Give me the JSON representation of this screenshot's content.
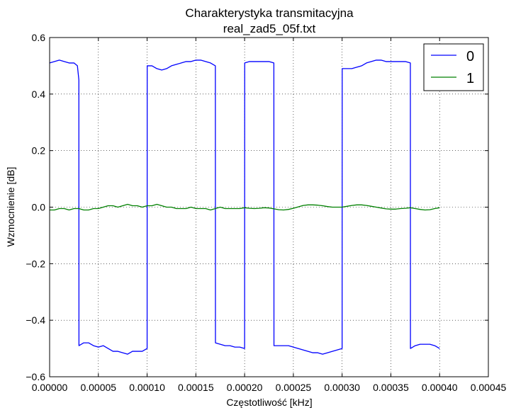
{
  "chart_data": {
    "type": "line",
    "title": "Charakterystyka transmitacyjna",
    "subtitle": "real_zad5_05f.txt",
    "xlabel": "Częstotliwość [kHz]",
    "ylabel": "Wzmocnienie [dB]",
    "xlim": [
      0,
      0.00045
    ],
    "ylim": [
      -0.6,
      0.6
    ],
    "grid": true,
    "legend_position": "top-right",
    "x_ticks": [
      "0.00000",
      "0.00005",
      "0.00010",
      "0.00015",
      "0.00020",
      "0.00025",
      "0.00030",
      "0.00035",
      "0.00040",
      "0.00045"
    ],
    "y_ticks": [
      "−0.6",
      "−0.4",
      "−0.2",
      "0.0",
      "0.2",
      "0.4",
      "0.6"
    ],
    "series": [
      {
        "name": "0",
        "color": "#0000ff",
        "points": [
          [
            0.0,
            0.51
          ],
          [
            5e-06,
            0.515
          ],
          [
            1e-05,
            0.52
          ],
          [
            1.5e-05,
            0.515
          ],
          [
            2e-05,
            0.51
          ],
          [
            2.5e-05,
            0.51
          ],
          [
            2.85e-05,
            0.5
          ],
          [
            3e-05,
            0.45
          ],
          [
            3.01e-05,
            -0.49
          ],
          [
            3.5e-05,
            -0.48
          ],
          [
            4e-05,
            -0.48
          ],
          [
            4.5e-05,
            -0.49
          ],
          [
            5e-05,
            -0.495
          ],
          [
            5.5e-05,
            -0.49
          ],
          [
            6e-05,
            -0.5
          ],
          [
            6.5e-05,
            -0.51
          ],
          [
            7e-05,
            -0.51
          ],
          [
            7.5e-05,
            -0.515
          ],
          [
            8e-05,
            -0.52
          ],
          [
            8.5e-05,
            -0.51
          ],
          [
            9e-05,
            -0.51
          ],
          [
            9.5e-05,
            -0.51
          ],
          [
            0.0001,
            -0.5
          ],
          [
            0.0001001,
            0.5
          ],
          [
            0.000105,
            0.5
          ],
          [
            0.00011,
            0.49
          ],
          [
            0.000115,
            0.485
          ],
          [
            0.00012,
            0.49
          ],
          [
            0.000125,
            0.5
          ],
          [
            0.00013,
            0.505
          ],
          [
            0.000135,
            0.51
          ],
          [
            0.00014,
            0.515
          ],
          [
            0.000145,
            0.515
          ],
          [
            0.00015,
            0.52
          ],
          [
            0.000155,
            0.52
          ],
          [
            0.00016,
            0.515
          ],
          [
            0.000165,
            0.51
          ],
          [
            0.00017,
            0.5
          ],
          [
            0.0001701,
            -0.48
          ],
          [
            0.000175,
            -0.485
          ],
          [
            0.00018,
            -0.49
          ],
          [
            0.000185,
            -0.49
          ],
          [
            0.00019,
            -0.495
          ],
          [
            0.000195,
            -0.495
          ],
          [
            0.0002,
            -0.5
          ],
          [
            0.0002001,
            0.51
          ],
          [
            0.000205,
            0.515
          ],
          [
            0.00021,
            0.515
          ],
          [
            0.000215,
            0.515
          ],
          [
            0.00022,
            0.515
          ],
          [
            0.000225,
            0.515
          ],
          [
            0.00023,
            0.51
          ],
          [
            0.0002301,
            -0.49
          ],
          [
            0.000235,
            -0.49
          ],
          [
            0.00024,
            -0.49
          ],
          [
            0.000245,
            -0.49
          ],
          [
            0.00025,
            -0.495
          ],
          [
            0.000255,
            -0.5
          ],
          [
            0.00026,
            -0.505
          ],
          [
            0.000265,
            -0.51
          ],
          [
            0.00027,
            -0.515
          ],
          [
            0.000275,
            -0.515
          ],
          [
            0.00028,
            -0.52
          ],
          [
            0.000285,
            -0.515
          ],
          [
            0.00029,
            -0.51
          ],
          [
            0.000295,
            -0.505
          ],
          [
            0.0003,
            -0.5
          ],
          [
            0.0003001,
            0.49
          ],
          [
            0.000305,
            0.49
          ],
          [
            0.00031,
            0.49
          ],
          [
            0.000315,
            0.495
          ],
          [
            0.00032,
            0.5
          ],
          [
            0.000325,
            0.51
          ],
          [
            0.00033,
            0.515
          ],
          [
            0.000335,
            0.52
          ],
          [
            0.00034,
            0.52
          ],
          [
            0.000345,
            0.515
          ],
          [
            0.00035,
            0.515
          ],
          [
            0.000355,
            0.515
          ],
          [
            0.00036,
            0.515
          ],
          [
            0.000365,
            0.515
          ],
          [
            0.00037,
            0.51
          ],
          [
            0.0003701,
            -0.5
          ],
          [
            0.000375,
            -0.49
          ],
          [
            0.00038,
            -0.485
          ],
          [
            0.000385,
            -0.485
          ],
          [
            0.00039,
            -0.485
          ],
          [
            0.000395,
            -0.49
          ],
          [
            0.0004,
            -0.5
          ]
        ]
      },
      {
        "name": "1",
        "color": "#008000",
        "points": [
          [
            0.0,
            -0.01
          ],
          [
            5e-06,
            -0.01
          ],
          [
            1e-05,
            -0.005
          ],
          [
            1.5e-05,
            -0.005
          ],
          [
            2e-05,
            -0.01
          ],
          [
            2.5e-05,
            -0.005
          ],
          [
            3e-05,
            -0.005
          ],
          [
            3.5e-05,
            -0.01
          ],
          [
            4e-05,
            -0.01
          ],
          [
            4.5e-05,
            -0.005
          ],
          [
            5e-05,
            -0.005
          ],
          [
            5.5e-05,
            0.0
          ],
          [
            6e-05,
            0.005
          ],
          [
            6.5e-05,
            0.005
          ],
          [
            7e-05,
            0.0
          ],
          [
            7.5e-05,
            0.005
          ],
          [
            8e-05,
            0.01
          ],
          [
            8.5e-05,
            0.005
          ],
          [
            9e-05,
            0.005
          ],
          [
            9.5e-05,
            0.0
          ],
          [
            0.0001,
            0.005
          ],
          [
            0.000105,
            0.005
          ],
          [
            0.00011,
            0.01
          ],
          [
            0.000115,
            0.005
          ],
          [
            0.00012,
            0.0
          ],
          [
            0.000125,
            0.0
          ],
          [
            0.00013,
            -0.005
          ],
          [
            0.000135,
            -0.005
          ],
          [
            0.00014,
            -0.005
          ],
          [
            0.000145,
            0.0
          ],
          [
            0.00015,
            -0.005
          ],
          [
            0.000155,
            -0.005
          ],
          [
            0.00016,
            -0.005
          ],
          [
            0.000165,
            -0.01
          ],
          [
            0.00017,
            -0.005
          ],
          [
            0.000175,
            0.0
          ],
          [
            0.00018,
            -0.005
          ],
          [
            0.000185,
            -0.005
          ],
          [
            0.00019,
            -0.005
          ],
          [
            0.000195,
            -0.005
          ],
          [
            0.0002,
            -0.002
          ],
          [
            0.000205,
            -0.004
          ],
          [
            0.00021,
            -0.005
          ],
          [
            0.000215,
            -0.004
          ],
          [
            0.00022,
            -0.002
          ],
          [
            0.000225,
            -0.003
          ],
          [
            0.00023,
            -0.006
          ],
          [
            0.000235,
            -0.009
          ],
          [
            0.00024,
            -0.01
          ],
          [
            0.000245,
            -0.008
          ],
          [
            0.00025,
            -0.004
          ],
          [
            0.000255,
            0.001
          ],
          [
            0.00026,
            0.006
          ],
          [
            0.000265,
            0.008
          ],
          [
            0.00027,
            0.008
          ],
          [
            0.000275,
            0.007
          ],
          [
            0.00028,
            0.005
          ],
          [
            0.000285,
            0.002
          ],
          [
            0.00029,
            0.0
          ],
          [
            0.000295,
            0.0
          ],
          [
            0.0003,
            0.0
          ],
          [
            0.000305,
            0.003
          ],
          [
            0.00031,
            0.006
          ],
          [
            0.000315,
            0.008
          ],
          [
            0.00032,
            0.008
          ],
          [
            0.000325,
            0.006
          ],
          [
            0.00033,
            0.003
          ],
          [
            0.000335,
            0.0
          ],
          [
            0.00034,
            -0.003
          ],
          [
            0.000345,
            -0.006
          ],
          [
            0.00035,
            -0.007
          ],
          [
            0.000355,
            -0.007
          ],
          [
            0.00036,
            -0.005
          ],
          [
            0.000365,
            -0.004
          ],
          [
            0.00037,
            -0.002
          ],
          [
            0.000375,
            -0.005
          ],
          [
            0.00038,
            -0.008
          ],
          [
            0.000385,
            -0.01
          ],
          [
            0.00039,
            -0.009
          ],
          [
            0.000395,
            -0.005
          ],
          [
            0.0004,
            -0.002
          ]
        ]
      }
    ]
  }
}
